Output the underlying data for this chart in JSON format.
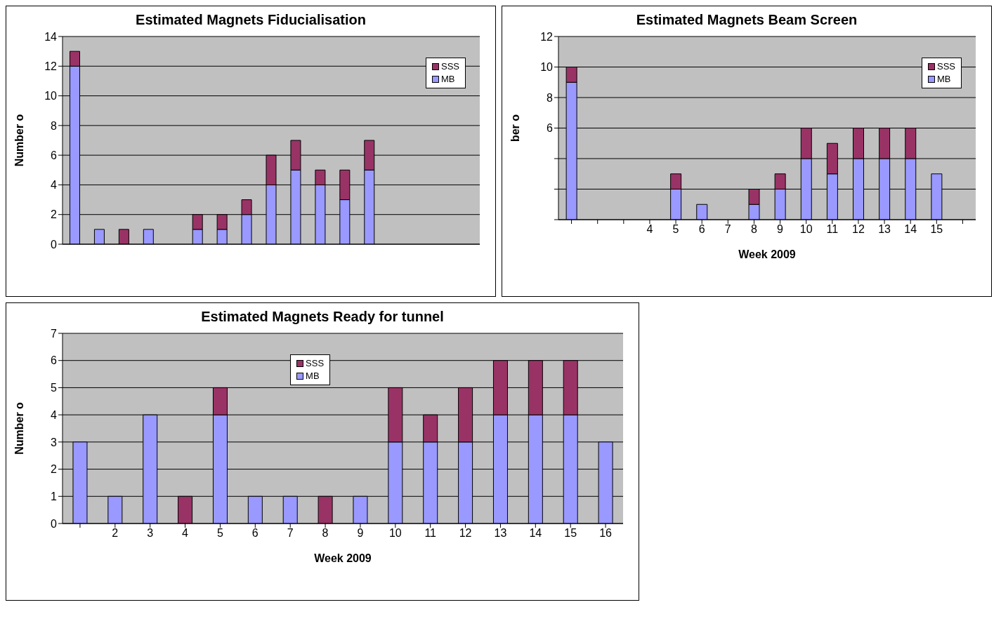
{
  "chart_data": [
    {
      "type": "bar",
      "title": "Estimated Magnets Fiducialisation",
      "ylabel": "Number o",
      "stacked": true,
      "categories": [
        null,
        null,
        null,
        null,
        null,
        null,
        null,
        null,
        null,
        null,
        null,
        null,
        null,
        null,
        null,
        null,
        null
      ],
      "series": [
        {
          "name": "MB",
          "color": "#9999ff",
          "values": [
            12,
            1,
            0,
            1,
            null,
            1,
            1,
            2,
            4,
            5,
            4,
            3,
            5,
            null,
            null,
            null,
            null
          ]
        },
        {
          "name": "SSS",
          "color": "#993366",
          "values": [
            1,
            0,
            1,
            0,
            null,
            1,
            1,
            1,
            2,
            2,
            1,
            2,
            2,
            null,
            null,
            null,
            null
          ]
        }
      ],
      "ylim": [
        0,
        14
      ],
      "yticks": [
        0,
        2,
        4,
        6,
        8,
        10,
        12,
        14
      ],
      "grid": "y",
      "legend": "top right",
      "tick_labels": "y"
    },
    {
      "type": "bar",
      "title": "Estimated Magnets Beam Screen",
      "ylabel": "ber o",
      "xlabel": "Week 2009",
      "stacked": true,
      "categories": [
        null,
        null,
        null,
        "4",
        "5",
        "6",
        "7",
        "8",
        "9",
        "10",
        "11",
        "12",
        "13",
        "14",
        "15",
        null
      ],
      "series": [
        {
          "name": "MB",
          "color": "#9999ff",
          "values": [
            9,
            null,
            null,
            null,
            2,
            1,
            0,
            1,
            2,
            4,
            3,
            4,
            4,
            4,
            3,
            0
          ]
        },
        {
          "name": "SSS",
          "color": "#993366",
          "values": [
            1,
            null,
            null,
            null,
            1,
            0,
            0,
            1,
            1,
            2,
            2,
            2,
            2,
            2,
            0,
            0
          ]
        }
      ],
      "ylim": [
        0,
        12
      ],
      "yticks": [
        {
          "value": 0,
          "label": null
        },
        {
          "value": 2,
          "label": null
        },
        {
          "value": 4,
          "label": null
        },
        6,
        8,
        10,
        12
      ],
      "grid": "y",
      "legend": "top right"
    },
    {
      "type": "bar",
      "title": "Estimated Magnets Ready for tunnel",
      "ylabel": "Number o",
      "xlabel": "Week 2009",
      "stacked": true,
      "categories": [
        null,
        "2",
        "3",
        "4",
        "5",
        "6",
        "7",
        "8",
        "9",
        "10",
        "11",
        "12",
        "13",
        "14",
        "15",
        "16"
      ],
      "series": [
        {
          "name": "MB",
          "color": "#9999ff",
          "values": [
            3,
            1,
            4,
            0,
            4,
            1,
            1,
            0,
            1,
            3,
            3,
            3,
            4,
            4,
            4,
            3
          ]
        },
        {
          "name": "SSS",
          "color": "#993366",
          "values": [
            0,
            0,
            0,
            1,
            1,
            0,
            0,
            1,
            0,
            2,
            1,
            2,
            2,
            2,
            2,
            0
          ]
        }
      ],
      "ylim": [
        0,
        7
      ],
      "yticks": [
        0,
        1,
        2,
        3,
        4,
        5,
        6,
        7
      ],
      "grid": "y",
      "legend": "top"
    }
  ]
}
